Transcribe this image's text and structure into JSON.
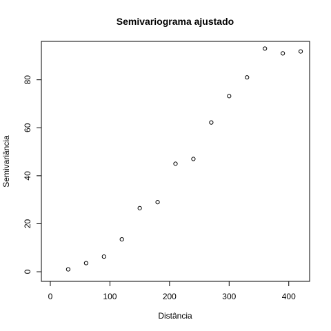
{
  "chart_data": {
    "type": "scatter",
    "title": "Semivariograma ajustado",
    "xlabel": "Distância",
    "ylabel": "Semivariância",
    "xlim": [
      -15,
      435
    ],
    "ylim": [
      -4,
      96
    ],
    "x_ticks": [
      0,
      100,
      200,
      300,
      400
    ],
    "y_ticks": [
      0,
      20,
      40,
      60,
      80
    ],
    "x": [
      30,
      60,
      90,
      120,
      150,
      180,
      210,
      240,
      270,
      300,
      330,
      360,
      390,
      420
    ],
    "y": [
      1.0,
      3.6,
      6.3,
      13.5,
      26.5,
      29.0,
      45.0,
      47.0,
      62.2,
      73.2,
      81.0,
      93.0,
      91.0,
      91.8
    ],
    "marker": "open-circle",
    "grid": false,
    "colors": {
      "axis": "#000000",
      "marker": "#000000",
      "background": "#ffffff"
    }
  }
}
